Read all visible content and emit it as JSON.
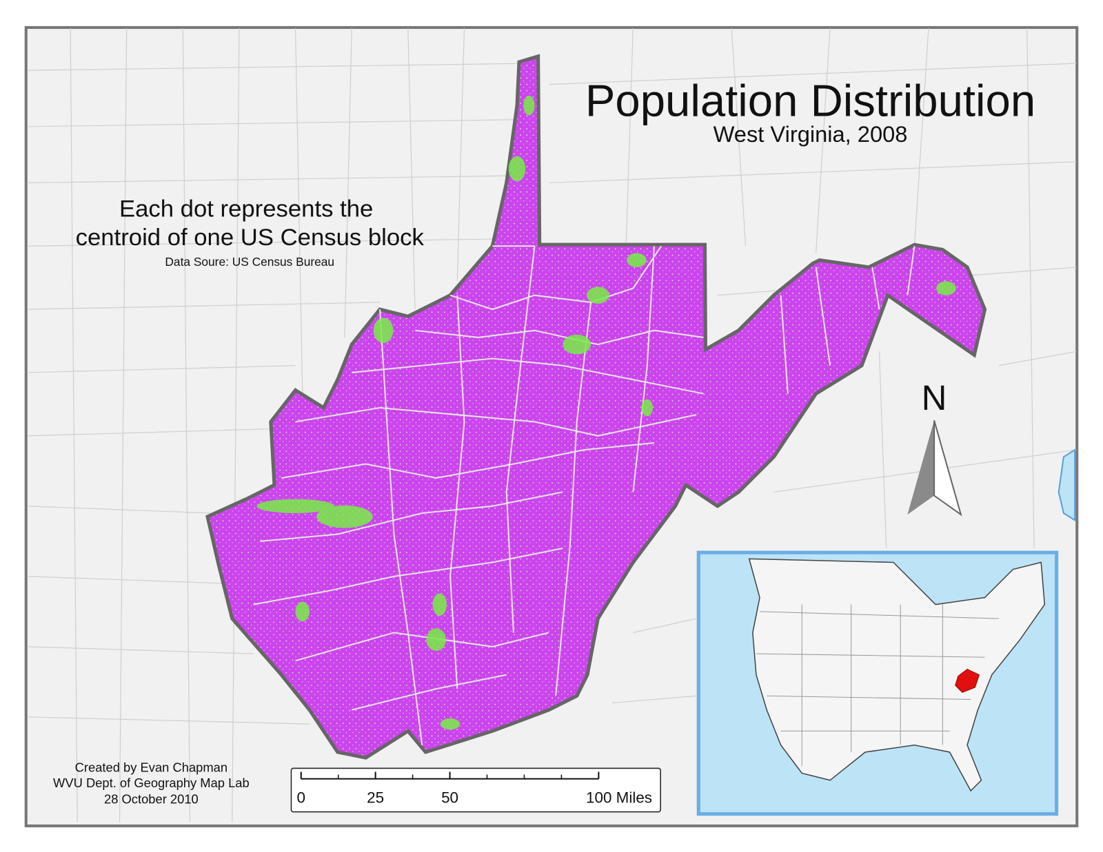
{
  "title": "Population Distribution",
  "subtitle": "West Virginia, 2008",
  "note": {
    "lines": [
      "Each dot represents the",
      "centroid of one US Census block"
    ],
    "source": "Data Soure: US Census Bureau"
  },
  "credits": [
    "Created by Evan Chapman",
    "WVU Dept. of Geography Map Lab",
    "28 October 2010"
  ],
  "north_arrow": "N",
  "scale_bar": {
    "range": [
      0,
      100
    ],
    "ticks": [
      0,
      25,
      50,
      {
        "value": 100,
        "label": "100 Miles"
      }
    ]
  }
}
